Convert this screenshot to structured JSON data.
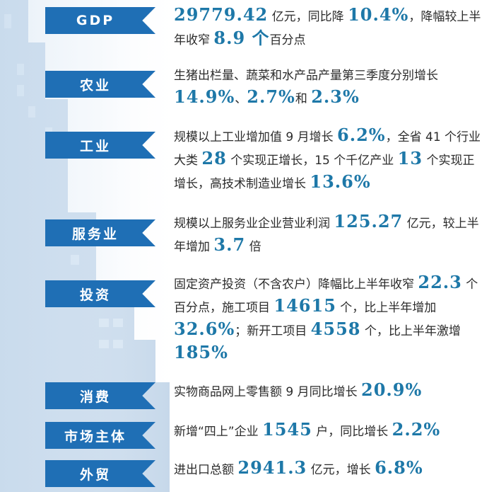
{
  "rows": [
    {
      "label": "GDP",
      "parts": [
        {
          "t": "29779.42",
          "hl": true
        },
        {
          "t": " 亿元，同比降 "
        },
        {
          "t": "10.4%",
          "hl": true
        },
        {
          "t": "，降幅较上半年收窄 "
        },
        {
          "t": "8.9 个",
          "hl": true
        },
        {
          "t": "百分点"
        }
      ]
    },
    {
      "label": "农业",
      "parts": [
        {
          "t": "生猪出栏量、蔬菜和水产品产量第三季度分别增长 "
        },
        {
          "t": "14.9%",
          "hl": true
        },
        {
          "t": "、"
        },
        {
          "t": "2.7%",
          "hl": true
        },
        {
          "t": "和 "
        },
        {
          "t": "2.3%",
          "hl": true
        }
      ]
    },
    {
      "label": "工业",
      "parts": [
        {
          "t": "规模以上工业增加值 9 月增长 "
        },
        {
          "t": "6.2%",
          "hl": true
        },
        {
          "t": "，全省 41 个行业大类 "
        },
        {
          "t": "28",
          "hl": true
        },
        {
          "t": " 个实现正增长，15 个千亿产业 "
        },
        {
          "t": "13",
          "hl": true
        },
        {
          "t": " 个实现正增长，高技术制造业增长 "
        },
        {
          "t": "13.6%",
          "hl": true
        }
      ]
    },
    {
      "label": "服务业",
      "parts": [
        {
          "t": "规模以上服务业企业营业利润 "
        },
        {
          "t": "125.27",
          "hl": true
        },
        {
          "t": " 亿元，较上半年增加 "
        },
        {
          "t": "3.7",
          "hl": true
        },
        {
          "t": " 倍"
        }
      ]
    },
    {
      "label": "投资",
      "parts": [
        {
          "t": "固定资产投资（不含农户）降幅比上半年收窄 "
        },
        {
          "t": "22.3",
          "hl": true
        },
        {
          "t": " 个百分点，施工项目 "
        },
        {
          "t": "14615",
          "hl": true
        },
        {
          "t": " 个，比上半年增加 "
        },
        {
          "t": "32.6%",
          "hl": true
        },
        {
          "t": "；新开工项目 "
        },
        {
          "t": "4558",
          "hl": true
        },
        {
          "t": " 个，比上半年激增 "
        },
        {
          "t": "185%",
          "hl": true
        }
      ]
    },
    {
      "label": "消费",
      "parts": [
        {
          "t": "实物商品网上零售额 9 月同比增长 "
        },
        {
          "t": "20.9%",
          "hl": true
        }
      ]
    },
    {
      "label": "市场主体",
      "parts": [
        {
          "t": "新增“四上”企业 "
        },
        {
          "t": "1545",
          "hl": true
        },
        {
          "t": " 户，同比增长 "
        },
        {
          "t": "2.2%",
          "hl": true
        }
      ]
    },
    {
      "label": "外贸",
      "parts": [
        {
          "t": "进出口总额 "
        },
        {
          "t": "2941.3",
          "hl": true
        },
        {
          "t": " 亿元，增长 "
        },
        {
          "t": "6.8%",
          "hl": true
        }
      ]
    }
  ]
}
